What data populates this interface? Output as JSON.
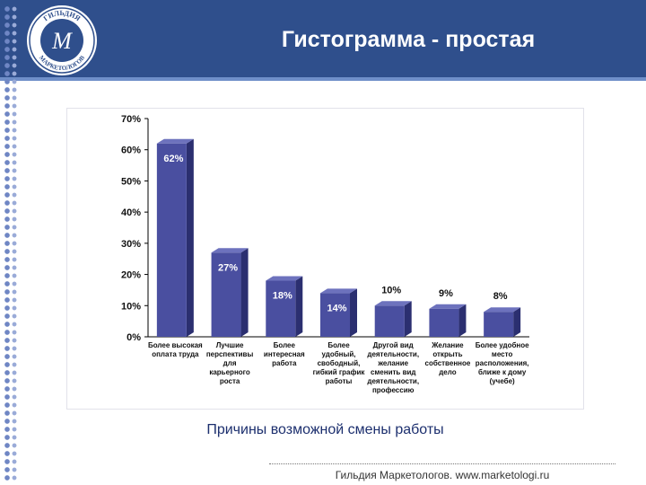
{
  "header": {
    "title": "Гистограмма - простая",
    "logo": {
      "top_text": "ГИЛЬДИЯ",
      "bottom_text": "МАРКЕТОЛОГОВ",
      "monogram": "М",
      "icon": "guild-logo-icon"
    }
  },
  "chart_data": {
    "type": "bar",
    "categories": [
      [
        "Более высокая",
        "оплата труда"
      ],
      [
        "Лучшие",
        "перспективы",
        "для",
        "карьерного",
        "роста"
      ],
      [
        "Более",
        "интересная",
        "работа"
      ],
      [
        "Более",
        "удобный,",
        "свободный,",
        "гибкий график",
        "работы"
      ],
      [
        "Другой вид",
        "деятельности,",
        "желание",
        "сменить вид",
        "деятельности,",
        "профессию"
      ],
      [
        "Желание",
        "открыть",
        "собственное",
        "дело"
      ],
      [
        "Более удобное",
        "место",
        "расположения,",
        "ближе к дому",
        "(учебе)"
      ]
    ],
    "values": [
      62,
      27,
      18,
      14,
      10,
      9,
      8
    ],
    "value_labels": [
      "62%",
      "27%",
      "18%",
      "14%",
      "10%",
      "9%",
      "8%"
    ],
    "ylim": [
      0,
      70
    ],
    "y_ticks": [
      0,
      10,
      20,
      30,
      40,
      50,
      60,
      70
    ],
    "y_tick_labels": [
      "0%",
      "10%",
      "20%",
      "30%",
      "40%",
      "50%",
      "60%",
      "70%"
    ],
    "xlabel": "",
    "ylabel": "",
    "grid": false,
    "colors": {
      "bar_front": "#4a4fa0",
      "bar_side": "#2b2f70",
      "bar_top": "#6d72bd",
      "axis": "#000000"
    }
  },
  "caption": "Причины возможной смены работы",
  "footer": "Гильдия Маркетологов. www.marketologi.ru"
}
